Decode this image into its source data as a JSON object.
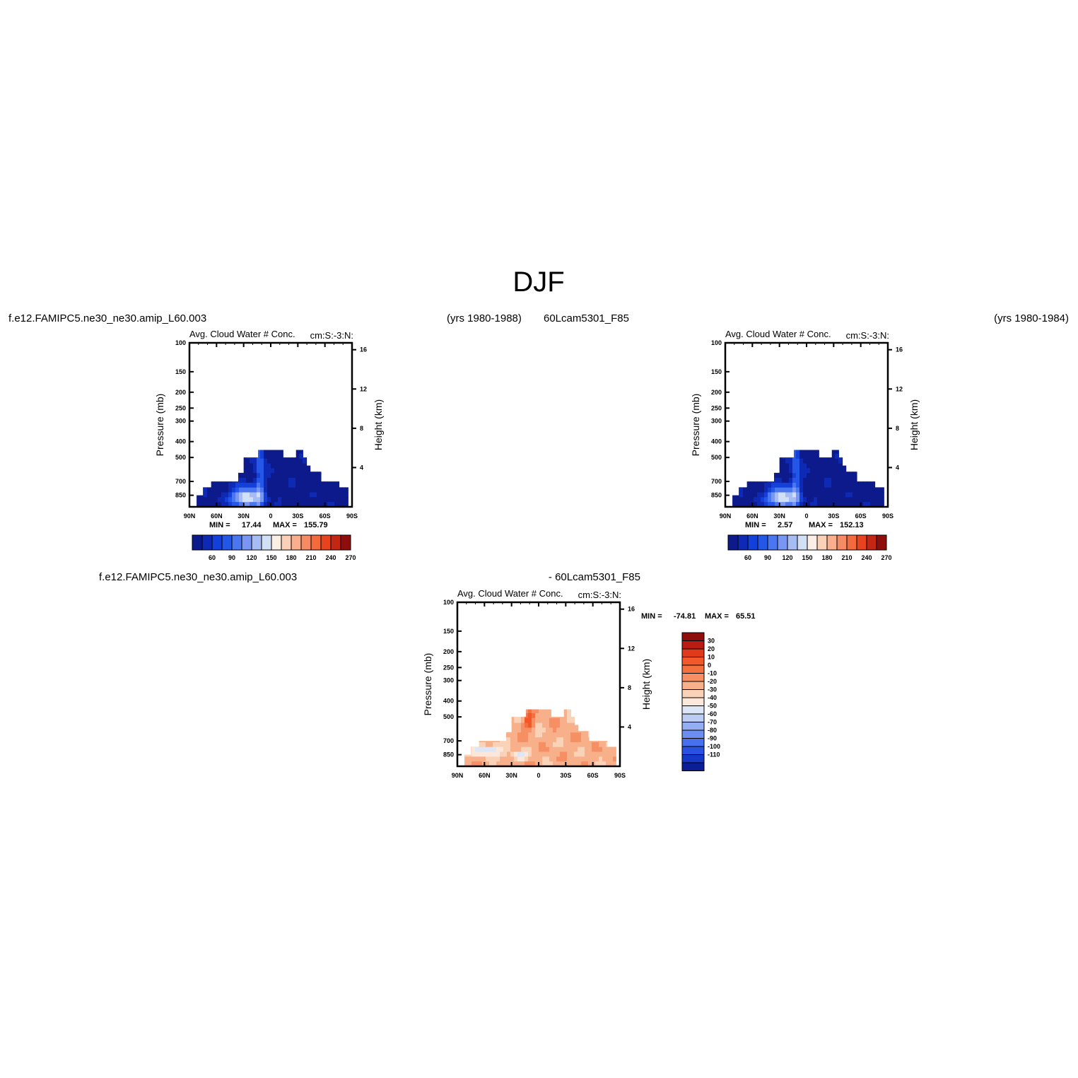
{
  "figure": {
    "title": "DJF"
  },
  "colors": {
    "blue_scale": [
      "#0c1a8c",
      "#0e2ab5",
      "#1240d8",
      "#2456e8",
      "#4a76f0",
      "#7896f2",
      "#a8bcf4",
      "#d2e0f6",
      "#fbeee4",
      "#fbd0b8",
      "#f9ae8e",
      "#f68a64",
      "#f26a3e",
      "#e6441e",
      "#c42614",
      "#8e0e0c"
    ],
    "diff_scale": [
      "#8e0e0c",
      "#b81c12",
      "#e03a1a",
      "#f2582a",
      "#f4703e",
      "#f69064",
      "#f8b08a",
      "#fad2b8",
      "#fbe8da",
      "#dce6f6",
      "#bccdf4",
      "#93aef2",
      "#6c8ef0",
      "#4870ec",
      "#2a52e2",
      "#1638c8",
      "#0c1e96"
    ]
  },
  "panels": [
    {
      "case_label": "f.e12.FAMIPC5.ne30_ne30.amip_L60.003",
      "years_label": "(yrs 1980-1988)",
      "subtitle_left": "Avg. Cloud Water # Conc.",
      "subtitle_right": "cm:S:-3:N:",
      "min_label": "MIN =",
      "min_value": "17.44",
      "max_label": "MAX =",
      "max_value": "155.79"
    },
    {
      "case_label": "60Lcam5301_F85",
      "years_label": "(yrs 1980-1984)",
      "subtitle_left": "Avg. Cloud Water # Conc.",
      "subtitle_right": "cm:S:-3:N:",
      "min_label": "MIN =",
      "min_value": "2.57",
      "max_label": "MAX =",
      "max_value": "152.13"
    },
    {
      "case_label": "f.e12.FAMIPC5.ne30_ne30.amip_L60.003",
      "case_label2": "- 60Lcam5301_F85",
      "subtitle_left": "Avg. Cloud Water # Conc.",
      "subtitle_right": "cm:S:-3:N:",
      "min_label": "MIN =",
      "min_value": "-74.81",
      "max_label": "MAX =",
      "max_value": "65.51"
    }
  ],
  "chart_data": [
    {
      "type": "heatmap",
      "title": "Avg. Cloud Water # Conc.",
      "xlabel": "",
      "ylabel": "Pressure (mb)",
      "y2label": "Height (km)",
      "x_ticklabels": [
        "90N",
        "60N",
        "30N",
        "0",
        "30S",
        "60S",
        "90S"
      ],
      "y_ticklabels": [
        "100",
        "150",
        "200",
        "250",
        "300",
        "400",
        "500",
        "700",
        "850"
      ],
      "y2_ticklabels": [
        "16",
        "12",
        "8",
        "4"
      ],
      "colorbar_labels": [
        "60",
        "90",
        "120",
        "150",
        "180",
        "210",
        "240",
        "270"
      ],
      "data_top_mb": [
        [
          -82,
          850
        ],
        [
          -75,
          760
        ],
        [
          -66,
          700
        ],
        [
          -50,
          700
        ],
        [
          -36,
          620
        ],
        [
          -30,
          500
        ],
        [
          -18,
          500
        ],
        [
          -14,
          450
        ],
        [
          -5,
          450
        ],
        [
          10,
          450
        ],
        [
          14,
          500
        ],
        [
          28,
          450
        ],
        [
          32,
          450
        ],
        [
          36,
          500
        ],
        [
          40,
          560
        ],
        [
          44,
          610
        ],
        [
          56,
          700
        ],
        [
          76,
          760
        ],
        [
          86,
          850
        ]
      ],
      "min": 17.44,
      "max": 155.79
    },
    {
      "type": "heatmap",
      "title": "Avg. Cloud Water # Conc.",
      "xlabel": "",
      "ylabel": "Pressure (mb)",
      "y2label": "Height (km)",
      "x_ticklabels": [
        "90N",
        "60N",
        "30N",
        "0",
        "30S",
        "60S",
        "90S"
      ],
      "y_ticklabels": [
        "100",
        "150",
        "200",
        "250",
        "300",
        "400",
        "500",
        "700",
        "850"
      ],
      "y2_ticklabels": [
        "16",
        "12",
        "8",
        "4"
      ],
      "colorbar_labels": [
        "60",
        "90",
        "120",
        "150",
        "180",
        "210",
        "240",
        "270"
      ],
      "data_top_mb": [
        [
          -82,
          850
        ],
        [
          -75,
          760
        ],
        [
          -66,
          700
        ],
        [
          -50,
          700
        ],
        [
          -36,
          620
        ],
        [
          -30,
          500
        ],
        [
          -18,
          500
        ],
        [
          -14,
          450
        ],
        [
          -5,
          450
        ],
        [
          10,
          450
        ],
        [
          14,
          500
        ],
        [
          28,
          450
        ],
        [
          32,
          450
        ],
        [
          36,
          500
        ],
        [
          40,
          560
        ],
        [
          44,
          610
        ],
        [
          56,
          700
        ],
        [
          76,
          760
        ],
        [
          86,
          850
        ]
      ],
      "min": 2.57,
      "max": 152.13
    },
    {
      "type": "heatmap",
      "title": "Avg. Cloud Water # Conc.",
      "xlabel": "",
      "ylabel": "Pressure (mb)",
      "y2label": "Height (km)",
      "x_ticklabels": [
        "90N",
        "60N",
        "30N",
        "0",
        "30S",
        "60S",
        "90S"
      ],
      "y_ticklabels": [
        "100",
        "150",
        "200",
        "250",
        "300",
        "400",
        "500",
        "700",
        "850"
      ],
      "y2_ticklabels": [
        "16",
        "12",
        "8",
        "4"
      ],
      "colorbar_labels": [
        "30",
        "20",
        "10",
        "0",
        "-10",
        "-20",
        "-30",
        "-40",
        "-50",
        "-60",
        "-70",
        "-80",
        "-90",
        "-100",
        "-110"
      ],
      "data_top_mb": [
        [
          -82,
          850
        ],
        [
          -75,
          760
        ],
        [
          -66,
          700
        ],
        [
          -50,
          700
        ],
        [
          -36,
          620
        ],
        [
          -30,
          500
        ],
        [
          -18,
          500
        ],
        [
          -14,
          450
        ],
        [
          -5,
          450
        ],
        [
          10,
          450
        ],
        [
          14,
          500
        ],
        [
          28,
          450
        ],
        [
          32,
          450
        ],
        [
          36,
          500
        ],
        [
          40,
          560
        ],
        [
          44,
          610
        ],
        [
          56,
          700
        ],
        [
          76,
          760
        ],
        [
          86,
          850
        ]
      ],
      "min": -74.81,
      "max": 65.51
    }
  ]
}
